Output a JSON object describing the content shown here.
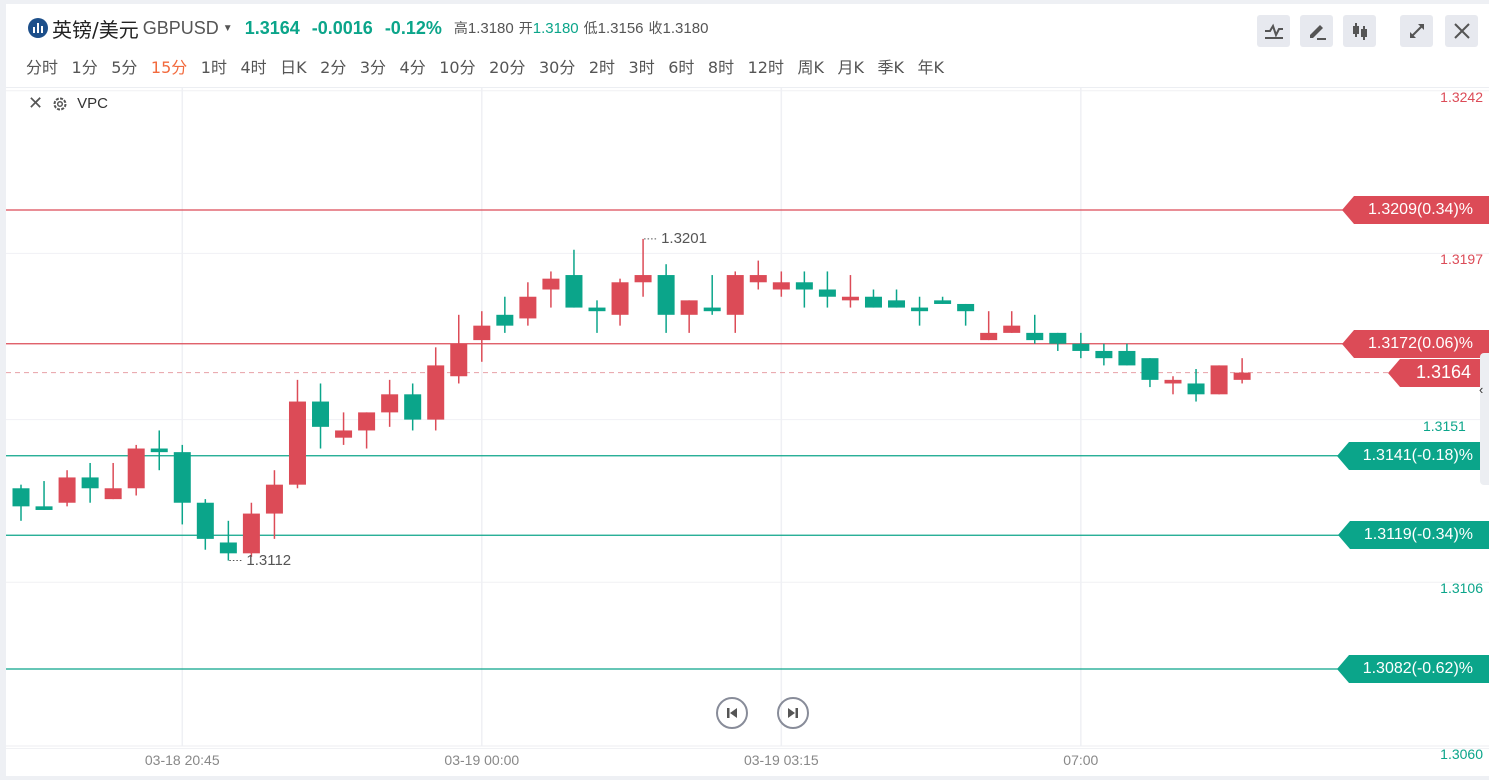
{
  "header": {
    "title": "英镑/美元",
    "symbol": "GBPUSD",
    "price": "1.3164",
    "change": "-0.0016",
    "change_pct": "-0.12%",
    "high_label": "高",
    "high": "1.3180",
    "open_label": "开",
    "open": "1.3180",
    "low_label": "低",
    "low": "1.3156",
    "close_label": "收",
    "close": "1.3180"
  },
  "intervals": [
    "分时",
    "1分",
    "5分",
    "15分",
    "1时",
    "4时",
    "日K",
    "2分",
    "3分",
    "4分",
    "10分",
    "20分",
    "30分",
    "2时",
    "3时",
    "6时",
    "8时",
    "12时",
    "周K",
    "月K",
    "季K",
    "年K"
  ],
  "active_interval": "15分",
  "toolbar": {
    "buttons": [
      "indicator-icon",
      "draw-pencil-icon",
      "candlestick-type-icon",
      "expand-icon",
      "close-icon"
    ]
  },
  "indicator": {
    "label": "VPC"
  },
  "colors": {
    "up": "#dc4b57",
    "down": "#0ba58a",
    "active_interval": "#f26a3d",
    "logo": "#1d4f8a"
  },
  "chart_data": {
    "type": "candlestick",
    "interval": "15分",
    "price_axis_ticks": [
      "1.3242",
      "1.3197",
      "1.3151",
      "1.3106",
      "1.3060"
    ],
    "time_axis_labels": [
      {
        "label": "03-18 20:45",
        "candle": 7
      },
      {
        "label": "03-19 00:00",
        "candle": 20
      },
      {
        "label": "03-19 03:15",
        "candle": 33
      },
      {
        "label": "07:00",
        "candle": 46
      }
    ],
    "current_price": "1.3164",
    "reference_lines": [
      {
        "price": 1.3209,
        "label": "1.3209(0.34)%",
        "dir": "up"
      },
      {
        "price": 1.3172,
        "label": "1.3172(0.06)%",
        "dir": "up"
      },
      {
        "price": 1.3141,
        "label": "1.3141(-0.18)%",
        "dir": "down"
      },
      {
        "price": 1.3119,
        "label": "1.3119(-0.34)%",
        "dir": "down"
      },
      {
        "price": 1.3082,
        "label": "1.3082(-0.62)%",
        "dir": "down"
      }
    ],
    "high_marker": {
      "label": "1.3201",
      "candle": 27
    },
    "low_marker": {
      "label": "1.3112",
      "candle": 9
    },
    "candles": [
      [
        1.3132,
        1.3133,
        1.3123,
        1.3127
      ],
      [
        1.3127,
        1.3134,
        1.3126,
        1.3126
      ],
      [
        1.3128,
        1.3137,
        1.3127,
        1.3135
      ],
      [
        1.3135,
        1.3139,
        1.3128,
        1.3132
      ],
      [
        1.3129,
        1.3139,
        1.3129,
        1.3132
      ],
      [
        1.3132,
        1.3144,
        1.313,
        1.3143
      ],
      [
        1.3143,
        1.3148,
        1.3137,
        1.3142
      ],
      [
        1.3142,
        1.3144,
        1.3122,
        1.3128
      ],
      [
        1.3128,
        1.3129,
        1.3115,
        1.3118
      ],
      [
        1.3117,
        1.3123,
        1.3112,
        1.3114
      ],
      [
        1.3114,
        1.3128,
        1.3113,
        1.3125
      ],
      [
        1.3125,
        1.3137,
        1.3118,
        1.3133
      ],
      [
        1.3133,
        1.3162,
        1.3132,
        1.3156
      ],
      [
        1.3156,
        1.3161,
        1.3143,
        1.3149
      ],
      [
        1.3146,
        1.3153,
        1.3144,
        1.3148
      ],
      [
        1.3148,
        1.3153,
        1.3143,
        1.3153
      ],
      [
        1.3153,
        1.3162,
        1.3149,
        1.3158
      ],
      [
        1.3158,
        1.3161,
        1.3148,
        1.3151
      ],
      [
        1.3151,
        1.3171,
        1.3148,
        1.3166
      ],
      [
        1.3163,
        1.318,
        1.3161,
        1.3172
      ],
      [
        1.3173,
        1.3181,
        1.3167,
        1.3177
      ],
      [
        1.318,
        1.3185,
        1.3175,
        1.3177
      ],
      [
        1.3179,
        1.3189,
        1.3177,
        1.3185
      ],
      [
        1.3187,
        1.3192,
        1.3182,
        1.319
      ],
      [
        1.3191,
        1.3198,
        1.3182,
        1.3182
      ],
      [
        1.3182,
        1.3184,
        1.3175,
        1.3181
      ],
      [
        1.318,
        1.319,
        1.3177,
        1.3189
      ],
      [
        1.3189,
        1.3201,
        1.3185,
        1.3191
      ],
      [
        1.3191,
        1.3194,
        1.3175,
        1.318
      ],
      [
        1.318,
        1.3184,
        1.3175,
        1.3184
      ],
      [
        1.3182,
        1.3191,
        1.318,
        1.3181
      ],
      [
        1.318,
        1.3192,
        1.3175,
        1.3191
      ],
      [
        1.3189,
        1.3195,
        1.3187,
        1.3191
      ],
      [
        1.3187,
        1.3192,
        1.3185,
        1.3189
      ],
      [
        1.3189,
        1.3192,
        1.3182,
        1.3187
      ],
      [
        1.3187,
        1.3192,
        1.3182,
        1.3185
      ],
      [
        1.3184,
        1.3191,
        1.3182,
        1.3185
      ],
      [
        1.3185,
        1.3187,
        1.3182,
        1.3182
      ],
      [
        1.3184,
        1.3187,
        1.3182,
        1.3182
      ],
      [
        1.3182,
        1.3185,
        1.3177,
        1.3181
      ],
      [
        1.3184,
        1.3185,
        1.3183,
        1.3183
      ],
      [
        1.3183,
        1.3183,
        1.3177,
        1.3181
      ],
      [
        1.3173,
        1.3181,
        1.3173,
        1.3175
      ],
      [
        1.3175,
        1.3181,
        1.3175,
        1.3177
      ],
      [
        1.3175,
        1.318,
        1.3172,
        1.3173
      ],
      [
        1.3175,
        1.3175,
        1.317,
        1.3172
      ],
      [
        1.3172,
        1.3175,
        1.3168,
        1.317
      ],
      [
        1.317,
        1.3172,
        1.3166,
        1.3168
      ],
      [
        1.317,
        1.3172,
        1.3166,
        1.3166
      ],
      [
        1.3168,
        1.3168,
        1.316,
        1.3162
      ],
      [
        1.3161,
        1.3163,
        1.3158,
        1.3162
      ],
      [
        1.3161,
        1.3165,
        1.3156,
        1.3158
      ],
      [
        1.3158,
        1.3166,
        1.3158,
        1.3166
      ],
      [
        1.3162,
        1.3168,
        1.3161,
        1.3164
      ]
    ]
  }
}
